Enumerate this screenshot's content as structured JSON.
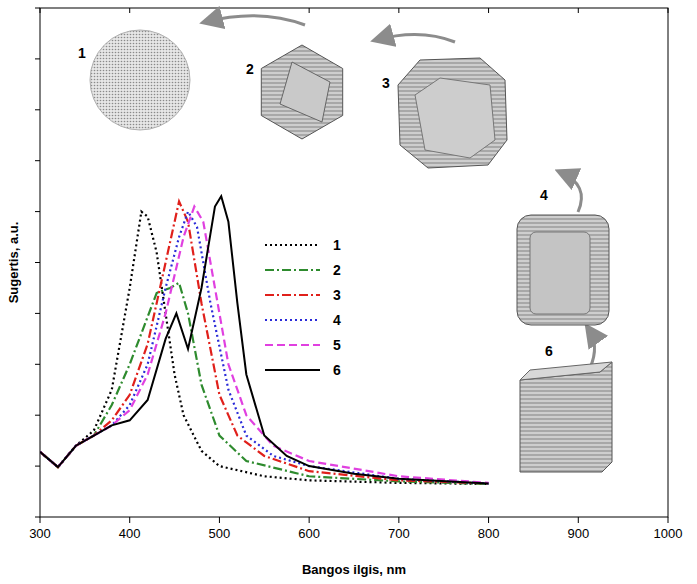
{
  "chart_data": {
    "type": "line",
    "x_label": "Bangos ilgis, nm",
    "y_label": "Sugertis, a.u.",
    "xlim": [
      300,
      1000
    ],
    "xticks": [
      300,
      400,
      500,
      600,
      700,
      800,
      900,
      1000
    ],
    "ylim": [
      0,
      1
    ],
    "yticks": [
      0,
      0.1,
      0.2,
      0.3,
      0.4,
      0.5,
      0.6,
      0.7,
      0.8,
      0.9,
      1
    ],
    "tick_labels": "x",
    "grid": false,
    "legend": "center",
    "annotations": [
      "1",
      "2",
      "3",
      "4",
      "6"
    ],
    "series": [
      {
        "name": "1",
        "color": "#000000",
        "line_style": "dotted",
        "x": [
          300,
          320,
          340,
          360,
          380,
          400,
          413,
          420,
          430,
          440,
          450,
          460,
          480,
          500,
          550,
          600,
          700,
          800
        ],
        "values": [
          0.128,
          0.098,
          0.14,
          0.17,
          0.25,
          0.45,
          0.6,
          0.59,
          0.52,
          0.4,
          0.28,
          0.2,
          0.13,
          0.1,
          0.08,
          0.072,
          0.067,
          0.065
        ]
      },
      {
        "name": "2",
        "color": "#2e8b2e",
        "line_style": "dashdot",
        "x": [
          300,
          320,
          340,
          360,
          380,
          400,
          430,
          445,
          455,
          465,
          480,
          500,
          530,
          600,
          700,
          800
        ],
        "values": [
          0.128,
          0.098,
          0.14,
          0.16,
          0.22,
          0.3,
          0.44,
          0.45,
          0.46,
          0.4,
          0.26,
          0.16,
          0.11,
          0.08,
          0.07,
          0.065
        ]
      },
      {
        "name": "3",
        "color": "#e0201b",
        "line_style": "dashdot",
        "x": [
          300,
          320,
          340,
          360,
          380,
          400,
          420,
          440,
          455,
          465,
          480,
          500,
          520,
          550,
          600,
          700,
          800
        ],
        "values": [
          0.128,
          0.098,
          0.14,
          0.16,
          0.19,
          0.24,
          0.34,
          0.5,
          0.62,
          0.58,
          0.42,
          0.24,
          0.16,
          0.12,
          0.09,
          0.072,
          0.066
        ]
      },
      {
        "name": "4",
        "color": "#2a2ad8",
        "line_style": "dotted",
        "x": [
          300,
          320,
          340,
          360,
          380,
          400,
          420,
          440,
          455,
          465,
          475,
          490,
          510,
          530,
          560,
          600,
          700,
          800
        ],
        "values": [
          0.128,
          0.098,
          0.14,
          0.16,
          0.18,
          0.22,
          0.3,
          0.45,
          0.55,
          0.6,
          0.57,
          0.42,
          0.25,
          0.16,
          0.12,
          0.1,
          0.075,
          0.066
        ]
      },
      {
        "name": "5",
        "color": "#e040e0",
        "line_style": "dashed",
        "x": [
          300,
          320,
          340,
          360,
          380,
          400,
          420,
          440,
          460,
          472,
          482,
          495,
          510,
          530,
          560,
          600,
          700,
          800
        ],
        "values": [
          0.128,
          0.098,
          0.14,
          0.16,
          0.18,
          0.21,
          0.28,
          0.4,
          0.55,
          0.61,
          0.58,
          0.45,
          0.3,
          0.2,
          0.14,
          0.11,
          0.08,
          0.067
        ]
      },
      {
        "name": "6",
        "color": "#000000",
        "line_style": "solid",
        "x": [
          300,
          320,
          340,
          360,
          380,
          400,
          420,
          440,
          452,
          465,
          480,
          495,
          502,
          510,
          520,
          530,
          550,
          575,
          600,
          650,
          700,
          800
        ],
        "values": [
          0.128,
          0.098,
          0.14,
          0.16,
          0.18,
          0.19,
          0.23,
          0.35,
          0.4,
          0.33,
          0.45,
          0.61,
          0.63,
          0.58,
          0.42,
          0.28,
          0.16,
          0.12,
          0.1,
          0.085,
          0.075,
          0.066
        ]
      }
    ]
  }
}
